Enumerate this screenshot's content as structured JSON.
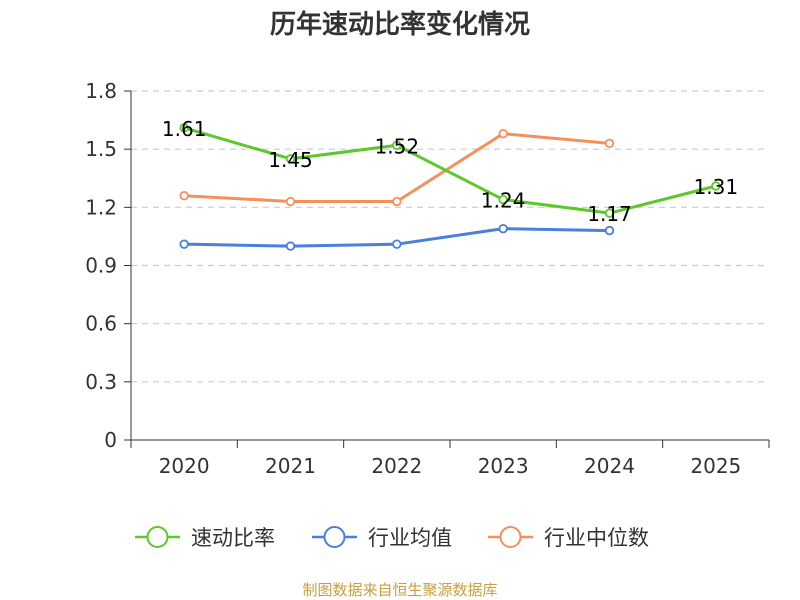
{
  "chart_data": {
    "type": "line",
    "title": "历年速动比率变化情况",
    "categories": [
      "2020",
      "2021",
      "2022",
      "2023",
      "2024",
      "2025"
    ],
    "y_ticks": [
      "0",
      "0.3",
      "0.6",
      "0.9",
      "1.2",
      "1.5",
      "1.8"
    ],
    "ylim": [
      0,
      1.8
    ],
    "grid": true,
    "legend_position": "bottom",
    "series": [
      {
        "name": "速动比率",
        "color": "#5cc82a",
        "values": [
          1.61,
          1.45,
          1.52,
          1.24,
          1.17,
          1.31
        ],
        "labels": [
          "1.61",
          "1.45",
          "1.52",
          "1.24",
          "1.17",
          "1.31"
        ]
      },
      {
        "name": "行业均值",
        "color": "#4a7fdc",
        "values": [
          1.01,
          1.0,
          1.01,
          1.09,
          1.08,
          null
        ]
      },
      {
        "name": "行业中位数",
        "color": "#f5905a",
        "values": [
          1.26,
          1.23,
          1.23,
          1.58,
          1.53,
          null
        ]
      }
    ],
    "source": "制图数据来自恒生聚源数据库"
  }
}
